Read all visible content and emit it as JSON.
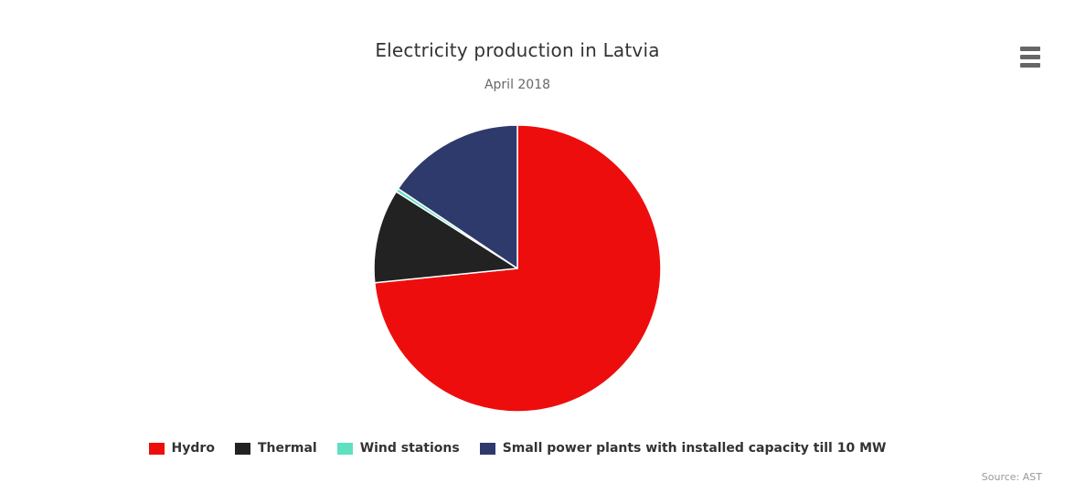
{
  "chart": {
    "title": "Electricity production in Latvia",
    "subtitle": "April 2018",
    "source_credit": "Source: AST",
    "context_menu_icon": "hamburger-icon"
  },
  "colors": {
    "background": "#ffffff",
    "title_text": "#333333",
    "subtitle_text": "#666666",
    "legend_text": "#333333",
    "source_text": "#999999",
    "menu_icon": "#666666",
    "slice_border": "#ffffff"
  },
  "chart_data": {
    "type": "pie",
    "title": "Electricity production in Latvia",
    "subtitle": "April 2018",
    "legend_position": "bottom",
    "start_angle_deg": 0,
    "direction": "clockwise",
    "value_note": "percent of total, estimated from slice arc angles (no data labels shown in chart)",
    "slices": [
      {
        "label": "Hydro",
        "percent": 73.4,
        "color": "#ee0d0d"
      },
      {
        "label": "Thermal",
        "percent": 10.6,
        "color": "#222222"
      },
      {
        "label": "Wind stations",
        "percent": 0.4,
        "color": "#5fe0c0"
      },
      {
        "label": "Small power plants with installed capacity till 10 MW",
        "percent": 15.6,
        "color": "#2e3a6c"
      }
    ]
  }
}
